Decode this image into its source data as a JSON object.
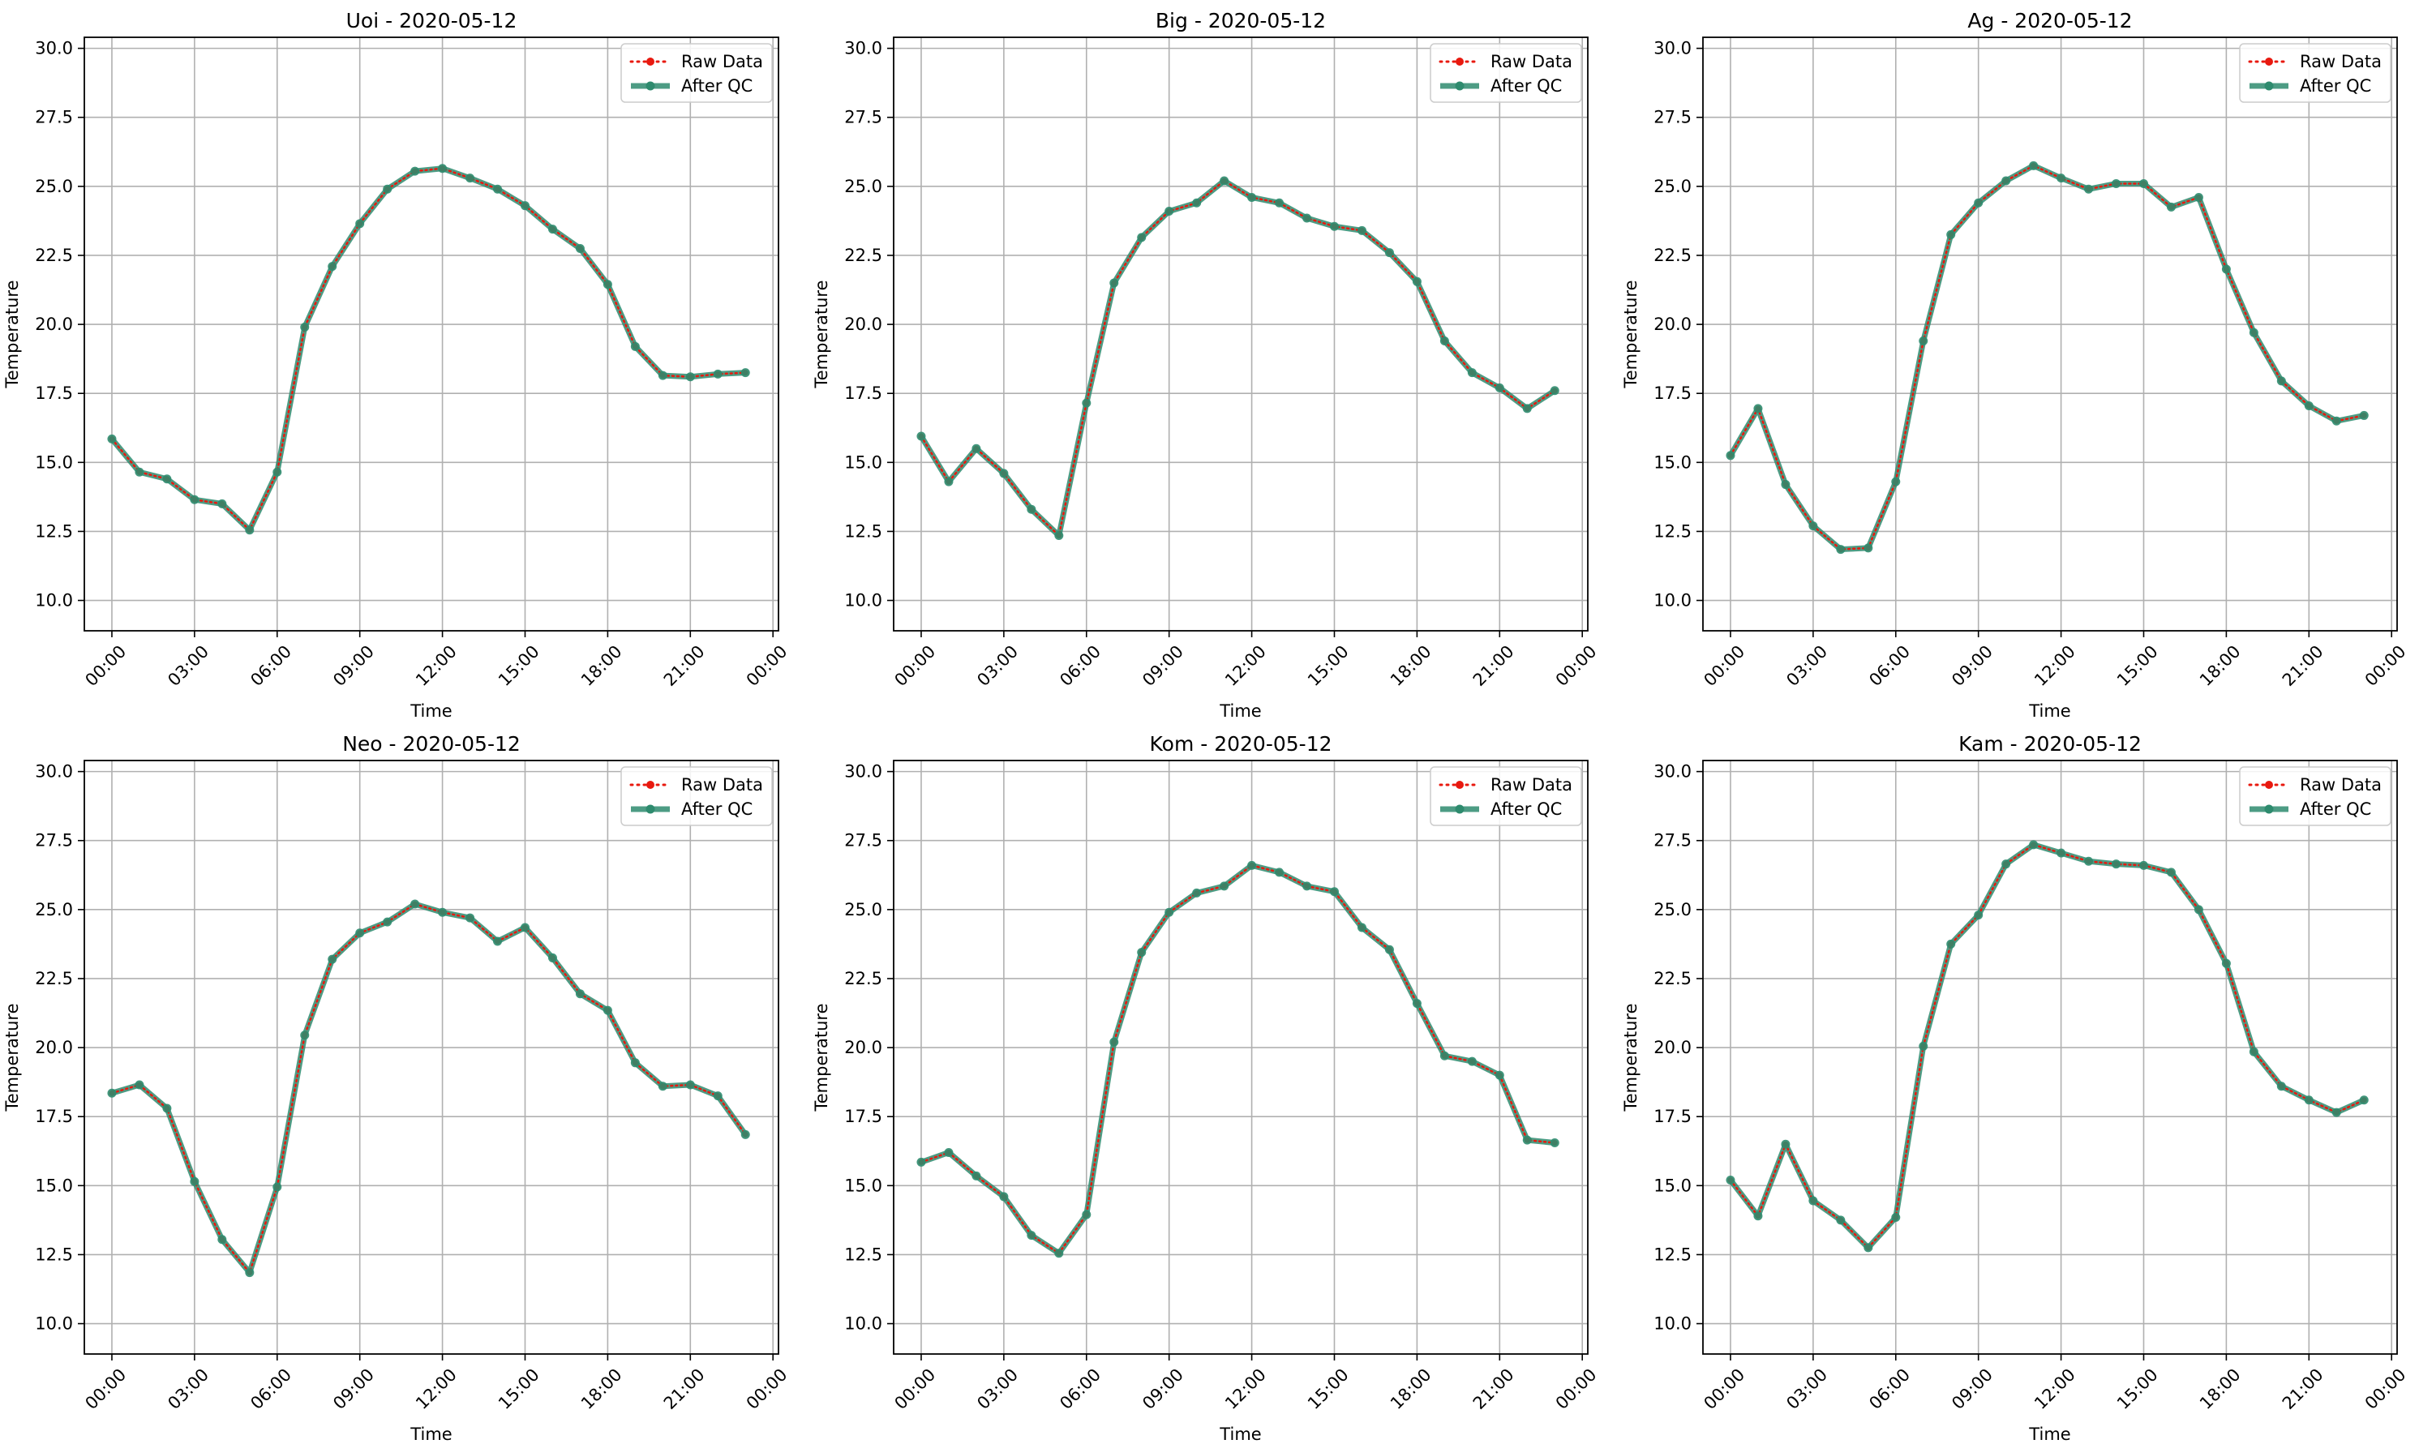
{
  "figure": {
    "xlabel": "Time",
    "ylabel": "Temperature",
    "legend": {
      "raw_label": "Raw Data",
      "qc_label": "After QC",
      "placement": "top-right"
    },
    "colors": {
      "raw": "#e8190f",
      "qc": "#2e8b6e",
      "grid": "#b0b0b0",
      "axes": "#000000"
    }
  },
  "chart_data": [
    {
      "type": "line",
      "title": "Uoi - 2020-05-12",
      "xlabel": "Time",
      "ylabel": "Temperature",
      "x_ticks": [
        "00:00",
        "03:00",
        "06:00",
        "09:00",
        "12:00",
        "15:00",
        "18:00",
        "21:00",
        "00:00"
      ],
      "y_ticks": [
        "10.0",
        "12.5",
        "15.0",
        "17.5",
        "20.0",
        "22.5",
        "25.0",
        "27.5",
        "30.0"
      ],
      "ylim": [
        8.9,
        30.4
      ],
      "xlim_hours": [
        -1.0,
        24.2
      ],
      "grid": true,
      "x_hours": [
        0,
        1,
        2,
        3,
        4,
        5,
        6,
        7,
        8,
        9,
        10,
        11,
        12,
        13,
        14,
        15,
        16,
        17,
        18,
        19,
        20,
        21,
        22,
        23
      ],
      "series": [
        {
          "name": "Raw Data",
          "values": [
            15.85,
            14.65,
            14.4,
            13.65,
            13.5,
            12.55,
            14.65,
            19.9,
            22.1,
            23.65,
            24.9,
            25.55,
            25.65,
            25.3,
            24.9,
            24.3,
            23.45,
            22.75,
            21.45,
            19.2,
            18.15,
            18.1,
            18.2,
            18.25
          ]
        },
        {
          "name": "After QC",
          "values": [
            15.85,
            14.65,
            14.4,
            13.65,
            13.5,
            12.55,
            14.65,
            19.9,
            22.1,
            23.65,
            24.9,
            25.55,
            25.65,
            25.3,
            24.9,
            24.3,
            23.45,
            22.75,
            21.45,
            19.2,
            18.15,
            18.1,
            18.2,
            18.25
          ]
        }
      ]
    },
    {
      "type": "line",
      "title": "Big - 2020-05-12",
      "xlabel": "Time",
      "ylabel": "Temperature",
      "x_ticks": [
        "00:00",
        "03:00",
        "06:00",
        "09:00",
        "12:00",
        "15:00",
        "18:00",
        "21:00",
        "00:00"
      ],
      "y_ticks": [
        "10.0",
        "12.5",
        "15.0",
        "17.5",
        "20.0",
        "22.5",
        "25.0",
        "27.5",
        "30.0"
      ],
      "ylim": [
        8.9,
        30.4
      ],
      "xlim_hours": [
        -1.0,
        24.2
      ],
      "grid": true,
      "x_hours": [
        0,
        1,
        2,
        3,
        4,
        5,
        6,
        7,
        8,
        9,
        10,
        11,
        12,
        13,
        14,
        15,
        16,
        17,
        18,
        19,
        20,
        21,
        22,
        23
      ],
      "series": [
        {
          "name": "Raw Data",
          "values": [
            15.95,
            14.3,
            15.5,
            14.6,
            13.3,
            12.35,
            17.15,
            21.5,
            23.15,
            24.1,
            24.4,
            25.2,
            24.6,
            24.4,
            23.85,
            23.55,
            23.4,
            22.6,
            21.55,
            19.4,
            18.25,
            17.7,
            16.95,
            17.6
          ]
        },
        {
          "name": "After QC",
          "values": [
            15.95,
            14.3,
            15.5,
            14.6,
            13.3,
            12.35,
            17.15,
            21.5,
            23.15,
            24.1,
            24.4,
            25.2,
            24.6,
            24.4,
            23.85,
            23.55,
            23.4,
            22.6,
            21.55,
            19.4,
            18.25,
            17.7,
            16.95,
            17.6
          ]
        }
      ]
    },
    {
      "type": "line",
      "title": "Ag - 2020-05-12",
      "xlabel": "Time",
      "ylabel": "Temperature",
      "x_ticks": [
        "00:00",
        "03:00",
        "06:00",
        "09:00",
        "12:00",
        "15:00",
        "18:00",
        "21:00",
        "00:00"
      ],
      "y_ticks": [
        "10.0",
        "12.5",
        "15.0",
        "17.5",
        "20.0",
        "22.5",
        "25.0",
        "27.5",
        "30.0"
      ],
      "ylim": [
        8.9,
        30.4
      ],
      "xlim_hours": [
        -1.0,
        24.2
      ],
      "grid": true,
      "x_hours": [
        0,
        1,
        2,
        3,
        4,
        5,
        6,
        7,
        8,
        9,
        10,
        11,
        12,
        13,
        14,
        15,
        16,
        17,
        18,
        19,
        20,
        21,
        22,
        23
      ],
      "series": [
        {
          "name": "Raw Data",
          "values": [
            15.25,
            16.95,
            14.2,
            12.7,
            11.85,
            11.9,
            14.3,
            19.4,
            23.25,
            24.4,
            25.2,
            25.75,
            25.3,
            24.9,
            25.1,
            25.1,
            24.25,
            24.6,
            22.0,
            19.7,
            17.95,
            17.05,
            16.5,
            16.7
          ]
        },
        {
          "name": "After QC",
          "values": [
            15.25,
            16.95,
            14.2,
            12.7,
            11.85,
            11.9,
            14.3,
            19.4,
            23.25,
            24.4,
            25.2,
            25.75,
            25.3,
            24.9,
            25.1,
            25.1,
            24.25,
            24.6,
            22.0,
            19.7,
            17.95,
            17.05,
            16.5,
            16.7
          ]
        }
      ]
    },
    {
      "type": "line",
      "title": "Neo - 2020-05-12",
      "xlabel": "Time",
      "ylabel": "Temperature",
      "x_ticks": [
        "00:00",
        "03:00",
        "06:00",
        "09:00",
        "12:00",
        "15:00",
        "18:00",
        "21:00",
        "00:00"
      ],
      "y_ticks": [
        "10.0",
        "12.5",
        "15.0",
        "17.5",
        "20.0",
        "22.5",
        "25.0",
        "27.5",
        "30.0"
      ],
      "ylim": [
        8.9,
        30.4
      ],
      "xlim_hours": [
        -1.0,
        24.2
      ],
      "grid": true,
      "x_hours": [
        0,
        1,
        2,
        3,
        4,
        5,
        6,
        7,
        8,
        9,
        10,
        11,
        12,
        13,
        14,
        15,
        16,
        17,
        18,
        19,
        20,
        21,
        22,
        23
      ],
      "series": [
        {
          "name": "Raw Data",
          "values": [
            18.35,
            18.65,
            17.8,
            15.15,
            13.05,
            11.85,
            14.95,
            20.45,
            23.2,
            24.15,
            24.55,
            25.2,
            24.9,
            24.7,
            23.85,
            24.35,
            23.25,
            21.95,
            21.35,
            19.45,
            18.6,
            18.65,
            18.25,
            16.85
          ]
        },
        {
          "name": "After QC",
          "values": [
            18.35,
            18.65,
            17.8,
            15.15,
            13.05,
            11.85,
            14.95,
            20.45,
            23.2,
            24.15,
            24.55,
            25.2,
            24.9,
            24.7,
            23.85,
            24.35,
            23.25,
            21.95,
            21.35,
            19.45,
            18.6,
            18.65,
            18.25,
            16.85
          ]
        }
      ]
    },
    {
      "type": "line",
      "title": "Kom - 2020-05-12",
      "xlabel": "Time",
      "ylabel": "Temperature",
      "x_ticks": [
        "00:00",
        "03:00",
        "06:00",
        "09:00",
        "12:00",
        "15:00",
        "18:00",
        "21:00",
        "00:00"
      ],
      "y_ticks": [
        "10.0",
        "12.5",
        "15.0",
        "17.5",
        "20.0",
        "22.5",
        "25.0",
        "27.5",
        "30.0"
      ],
      "ylim": [
        8.9,
        30.4
      ],
      "xlim_hours": [
        -1.0,
        24.2
      ],
      "grid": true,
      "x_hours": [
        0,
        1,
        2,
        3,
        4,
        5,
        6,
        7,
        8,
        9,
        10,
        11,
        12,
        13,
        14,
        15,
        16,
        17,
        18,
        19,
        20,
        21,
        22,
        23
      ],
      "series": [
        {
          "name": "Raw Data",
          "values": [
            15.85,
            16.2,
            15.35,
            14.6,
            13.2,
            12.55,
            13.95,
            20.2,
            23.45,
            24.9,
            25.6,
            25.85,
            26.6,
            26.35,
            25.85,
            25.65,
            24.35,
            23.55,
            21.6,
            19.7,
            19.5,
            19.0,
            16.65,
            16.55
          ]
        },
        {
          "name": "After QC",
          "values": [
            15.85,
            16.2,
            15.35,
            14.6,
            13.2,
            12.55,
            13.95,
            20.2,
            23.45,
            24.9,
            25.6,
            25.85,
            26.6,
            26.35,
            25.85,
            25.65,
            24.35,
            23.55,
            21.6,
            19.7,
            19.5,
            19.0,
            16.65,
            16.55
          ]
        }
      ]
    },
    {
      "type": "line",
      "title": "Kam - 2020-05-12",
      "xlabel": "Time",
      "ylabel": "Temperature",
      "x_ticks": [
        "00:00",
        "03:00",
        "06:00",
        "09:00",
        "12:00",
        "15:00",
        "18:00",
        "21:00",
        "00:00"
      ],
      "y_ticks": [
        "10.0",
        "12.5",
        "15.0",
        "17.5",
        "20.0",
        "22.5",
        "25.0",
        "27.5",
        "30.0"
      ],
      "ylim": [
        8.9,
        30.4
      ],
      "xlim_hours": [
        -1.0,
        24.2
      ],
      "grid": true,
      "x_hours": [
        0,
        1,
        2,
        3,
        4,
        5,
        6,
        7,
        8,
        9,
        10,
        11,
        12,
        13,
        14,
        15,
        16,
        17,
        18,
        19,
        20,
        21,
        22,
        23
      ],
      "series": [
        {
          "name": "Raw Data",
          "values": [
            15.2,
            13.9,
            16.5,
            14.45,
            13.75,
            12.75,
            13.85,
            20.05,
            23.75,
            24.8,
            26.65,
            27.35,
            27.05,
            26.75,
            26.65,
            26.6,
            26.35,
            25.0,
            23.05,
            19.85,
            18.6,
            18.1,
            17.65,
            18.1
          ]
        },
        {
          "name": "After QC",
          "values": [
            15.2,
            13.9,
            16.5,
            14.45,
            13.75,
            12.75,
            13.85,
            20.05,
            23.75,
            24.8,
            26.65,
            27.35,
            27.05,
            26.75,
            26.65,
            26.6,
            26.35,
            25.0,
            23.05,
            19.85,
            18.6,
            18.1,
            17.65,
            18.1
          ]
        }
      ]
    }
  ]
}
